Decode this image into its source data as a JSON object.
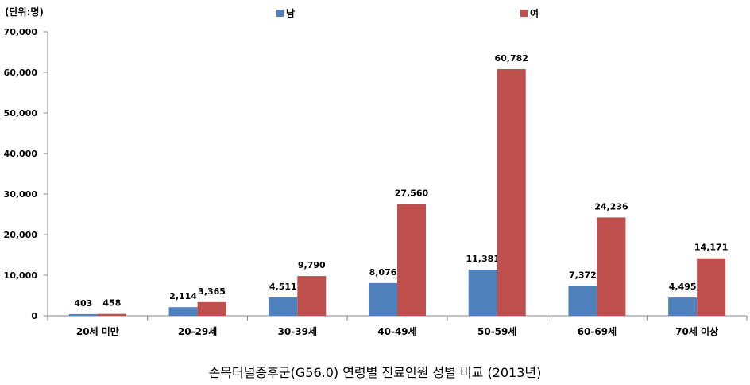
{
  "chart_data": {
    "type": "bar",
    "unit_label": "(단위:명)",
    "title": "손목터널증후군(G56.0) 연령별 진료인원 성별 비교 (2013년)",
    "categories": [
      "20세 미만",
      "20-29세",
      "30-39세",
      "40-49세",
      "50-59세",
      "60-69세",
      "70세 이상"
    ],
    "series": [
      {
        "name": "남",
        "color": "#4F81BD",
        "values": [
          403,
          2114,
          4511,
          8076,
          11381,
          7372,
          4495
        ],
        "labels": [
          "403",
          "2,114",
          "4,511",
          "8,076",
          "11,381",
          "7,372",
          "4,495"
        ]
      },
      {
        "name": "여",
        "color": "#C0504D",
        "values": [
          458,
          3365,
          9790,
          27560,
          60782,
          24236,
          14171
        ],
        "labels": [
          "458",
          "3,365",
          "9,790",
          "27,560",
          "60,782",
          "24,236",
          "14,171"
        ]
      }
    ],
    "ylim": [
      0,
      70000
    ],
    "yticks": [
      0,
      10000,
      20000,
      30000,
      40000,
      50000,
      60000,
      70000
    ],
    "ytick_labels": [
      "0",
      "10,000",
      "20,000",
      "30,000",
      "40,000",
      "50,000",
      "60,000",
      "70,000"
    ],
    "legend_position": "top-center",
    "grid": false
  }
}
